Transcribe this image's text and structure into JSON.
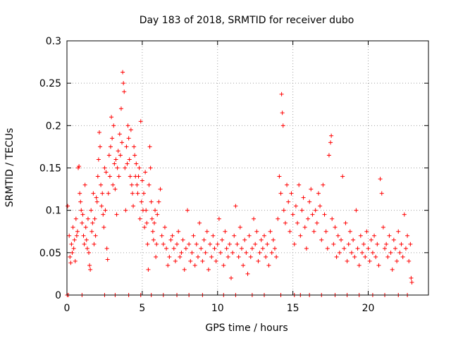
{
  "chart_data": {
    "type": "scatter",
    "title": "Day 183 of 2018, SRMTID for receiver dubo",
    "xlabel": "GPS time / hours",
    "ylabel": "SRMTID / TECUs",
    "xlim": [
      0,
      24
    ],
    "ylim": [
      0,
      0.3
    ],
    "grid": true,
    "marker": "+",
    "color": "#ff0000",
    "x_ticks": [
      {
        "value": 0,
        "label": "0"
      },
      {
        "value": 5,
        "label": "5"
      },
      {
        "value": 10,
        "label": "10"
      },
      {
        "value": 15,
        "label": "15"
      },
      {
        "value": 20,
        "label": "20"
      }
    ],
    "y_ticks": [
      {
        "value": 0,
        "label": "0"
      },
      {
        "value": 0.05,
        "label": "0.05"
      },
      {
        "value": 0.1,
        "label": "0.1"
      },
      {
        "value": 0.15,
        "label": "0.15"
      },
      {
        "value": 0.2,
        "label": "0.2"
      },
      {
        "value": 0.25,
        "label": "0.25"
      },
      {
        "value": 0.3,
        "label": "0.3"
      }
    ],
    "points": [
      [
        0.05,
        0.105
      ],
      [
        0.15,
        0.07
      ],
      [
        0.2,
        0.045
      ],
      [
        0.25,
        0.038
      ],
      [
        0.3,
        0.06
      ],
      [
        0.35,
        0.05
      ],
      [
        0.4,
        0.08
      ],
      [
        0.45,
        0.055
      ],
      [
        0.5,
        0.065
      ],
      [
        0.55,
        0.04
      ],
      [
        0.6,
        0.09
      ],
      [
        0.65,
        0.07
      ],
      [
        0.7,
        0.075
      ],
      [
        0.75,
        0.15
      ],
      [
        0.8,
        0.152
      ],
      [
        0.85,
        0.12
      ],
      [
        0.9,
        0.11
      ],
      [
        0.95,
        0.1
      ],
      [
        1.0,
        0.085
      ],
      [
        1.05,
        0.095
      ],
      [
        1.1,
        0.07
      ],
      [
        1.15,
        0.06
      ],
      [
        1.2,
        0.13
      ],
      [
        1.25,
        0.08
      ],
      [
        1.3,
        0.065
      ],
      [
        1.35,
        0.055
      ],
      [
        1.4,
        0.09
      ],
      [
        1.45,
        0.05
      ],
      [
        1.5,
        0.035
      ],
      [
        1.55,
        0.03
      ],
      [
        1.6,
        0.1
      ],
      [
        1.65,
        0.075
      ],
      [
        1.7,
        0.085
      ],
      [
        1.75,
        0.12
      ],
      [
        1.8,
        0.06
      ],
      [
        1.85,
        0.09
      ],
      [
        1.9,
        0.07
      ],
      [
        1.95,
        0.115
      ],
      [
        2.0,
        0.11
      ],
      [
        2.05,
        0.14
      ],
      [
        2.1,
        0.16
      ],
      [
        2.15,
        0.192
      ],
      [
        2.2,
        0.175
      ],
      [
        2.25,
        0.13
      ],
      [
        2.3,
        0.105
      ],
      [
        2.35,
        0.12
      ],
      [
        2.4,
        0.095
      ],
      [
        2.45,
        0.08
      ],
      [
        2.5,
        0.15
      ],
      [
        2.55,
        0.1
      ],
      [
        2.6,
        0.145
      ],
      [
        2.65,
        0.055
      ],
      [
        2.7,
        0.042
      ],
      [
        2.75,
        0.12
      ],
      [
        2.8,
        0.165
      ],
      [
        2.85,
        0.14
      ],
      [
        2.9,
        0.175
      ],
      [
        2.95,
        0.21
      ],
      [
        3.0,
        0.185
      ],
      [
        3.05,
        0.13
      ],
      [
        3.1,
        0.2
      ],
      [
        3.15,
        0.155
      ],
      [
        3.2,
        0.125
      ],
      [
        3.25,
        0.16
      ],
      [
        3.3,
        0.095
      ],
      [
        3.35,
        0.15
      ],
      [
        3.4,
        0.17
      ],
      [
        3.45,
        0.14
      ],
      [
        3.5,
        0.19
      ],
      [
        3.55,
        0.165
      ],
      [
        3.6,
        0.22
      ],
      [
        3.65,
        0.18
      ],
      [
        3.7,
        0.263
      ],
      [
        3.75,
        0.25
      ],
      [
        3.8,
        0.24
      ],
      [
        3.85,
        0.15
      ],
      [
        3.9,
        0.1
      ],
      [
        3.95,
        0.175
      ],
      [
        4.0,
        0.155
      ],
      [
        4.05,
        0.2
      ],
      [
        4.1,
        0.185
      ],
      [
        4.15,
        0.16
      ],
      [
        4.2,
        0.14
      ],
      [
        4.25,
        0.195
      ],
      [
        4.3,
        0.13
      ],
      [
        4.35,
        0.12
      ],
      [
        4.4,
        0.105
      ],
      [
        4.45,
        0.175
      ],
      [
        4.5,
        0.165
      ],
      [
        4.55,
        0.14
      ],
      [
        4.6,
        0.155
      ],
      [
        4.65,
        0.13
      ],
      [
        4.7,
        0.12
      ],
      [
        4.75,
        0.14
      ],
      [
        4.8,
        0.15
      ],
      [
        4.85,
        0.09
      ],
      [
        4.9,
        0.205
      ],
      [
        4.95,
        0.11
      ],
      [
        5.0,
        0.135
      ],
      [
        5.05,
        0.1
      ],
      [
        5.1,
        0.12
      ],
      [
        5.15,
        0.08
      ],
      [
        5.2,
        0.145
      ],
      [
        5.25,
        0.1
      ],
      [
        5.3,
        0.085
      ],
      [
        5.35,
        0.06
      ],
      [
        5.4,
        0.03
      ],
      [
        5.45,
        0.13
      ],
      [
        5.5,
        0.175
      ],
      [
        5.55,
        0.15
      ],
      [
        5.6,
        0.11
      ],
      [
        5.65,
        0.09
      ],
      [
        5.7,
        0.075
      ],
      [
        5.75,
        0.065
      ],
      [
        5.8,
        0.085
      ],
      [
        5.85,
        0.1
      ],
      [
        5.9,
        0.045
      ],
      [
        5.95,
        0.06
      ],
      [
        6.0,
        0.095
      ],
      [
        6.1,
        0.11
      ],
      [
        6.2,
        0.125
      ],
      [
        6.3,
        0.07
      ],
      [
        6.4,
        0.06
      ],
      [
        6.5,
        0.08
      ],
      [
        6.6,
        0.055
      ],
      [
        6.7,
        0.035
      ],
      [
        6.8,
        0.045
      ],
      [
        6.9,
        0.065
      ],
      [
        7.0,
        0.07
      ],
      [
        7.1,
        0.055
      ],
      [
        7.2,
        0.04
      ],
      [
        7.3,
        0.06
      ],
      [
        7.4,
        0.075
      ],
      [
        7.5,
        0.045
      ],
      [
        7.6,
        0.05
      ],
      [
        7.7,
        0.065
      ],
      [
        7.8,
        0.03
      ],
      [
        7.9,
        0.055
      ],
      [
        8.0,
        0.1
      ],
      [
        8.1,
        0.06
      ],
      [
        8.2,
        0.04
      ],
      [
        8.3,
        0.05
      ],
      [
        8.4,
        0.07
      ],
      [
        8.5,
        0.035
      ],
      [
        8.6,
        0.06
      ],
      [
        8.7,
        0.045
      ],
      [
        8.8,
        0.085
      ],
      [
        8.9,
        0.055
      ],
      [
        9.0,
        0.04
      ],
      [
        9.1,
        0.065
      ],
      [
        9.2,
        0.05
      ],
      [
        9.3,
        0.075
      ],
      [
        9.4,
        0.03
      ],
      [
        9.5,
        0.06
      ],
      [
        9.6,
        0.045
      ],
      [
        9.7,
        0.07
      ],
      [
        9.8,
        0.055
      ],
      [
        9.9,
        0.04
      ],
      [
        10.0,
        0.06
      ],
      [
        10.1,
        0.09
      ],
      [
        10.2,
        0.05
      ],
      [
        10.3,
        0.065
      ],
      [
        10.4,
        0.035
      ],
      [
        10.5,
        0.075
      ],
      [
        10.6,
        0.055
      ],
      [
        10.7,
        0.045
      ],
      [
        10.8,
        0.06
      ],
      [
        10.9,
        0.02
      ],
      [
        11.0,
        0.05
      ],
      [
        11.1,
        0.07
      ],
      [
        11.2,
        0.105
      ],
      [
        11.3,
        0.06
      ],
      [
        11.4,
        0.045
      ],
      [
        11.5,
        0.08
      ],
      [
        11.6,
        0.055
      ],
      [
        11.7,
        0.035
      ],
      [
        11.8,
        0.065
      ],
      [
        11.9,
        0.05
      ],
      [
        12.0,
        0.025
      ],
      [
        12.1,
        0.07
      ],
      [
        12.2,
        0.045
      ],
      [
        12.3,
        0.055
      ],
      [
        12.4,
        0.09
      ],
      [
        12.5,
        0.06
      ],
      [
        12.6,
        0.075
      ],
      [
        12.7,
        0.04
      ],
      [
        12.8,
        0.05
      ],
      [
        12.9,
        0.065
      ],
      [
        13.0,
        0.055
      ],
      [
        13.1,
        0.07
      ],
      [
        13.2,
        0.045
      ],
      [
        13.3,
        0.06
      ],
      [
        13.4,
        0.035
      ],
      [
        13.5,
        0.075
      ],
      [
        13.6,
        0.05
      ],
      [
        13.7,
        0.065
      ],
      [
        13.8,
        0.055
      ],
      [
        13.9,
        0.045
      ],
      [
        14.0,
        0.09
      ],
      [
        14.1,
        0.14
      ],
      [
        14.2,
        0.12
      ],
      [
        14.25,
        0.237
      ],
      [
        14.3,
        0.215
      ],
      [
        14.35,
        0.2
      ],
      [
        14.4,
        0.1
      ],
      [
        14.5,
        0.085
      ],
      [
        14.6,
        0.13
      ],
      [
        14.7,
        0.11
      ],
      [
        14.8,
        0.075
      ],
      [
        14.9,
        0.12
      ],
      [
        15.0,
        0.095
      ],
      [
        15.1,
        0.06
      ],
      [
        15.2,
        0.105
      ],
      [
        15.3,
        0.085
      ],
      [
        15.4,
        0.13
      ],
      [
        15.5,
        0.07
      ],
      [
        15.6,
        0.1
      ],
      [
        15.7,
        0.115
      ],
      [
        15.8,
        0.08
      ],
      [
        15.9,
        0.055
      ],
      [
        16.0,
        0.09
      ],
      [
        16.1,
        0.11
      ],
      [
        16.2,
        0.125
      ],
      [
        16.3,
        0.095
      ],
      [
        16.4,
        0.075
      ],
      [
        16.5,
        0.1
      ],
      [
        16.6,
        0.085
      ],
      [
        16.7,
        0.12
      ],
      [
        16.8,
        0.105
      ],
      [
        16.9,
        0.065
      ],
      [
        17.0,
        0.13
      ],
      [
        17.1,
        0.095
      ],
      [
        17.2,
        0.075
      ],
      [
        17.3,
        0.055
      ],
      [
        17.4,
        0.165
      ],
      [
        17.5,
        0.18
      ],
      [
        17.55,
        0.188
      ],
      [
        17.6,
        0.09
      ],
      [
        17.7,
        0.06
      ],
      [
        17.8,
        0.08
      ],
      [
        17.9,
        0.045
      ],
      [
        18.0,
        0.07
      ],
      [
        18.1,
        0.05
      ],
      [
        18.2,
        0.065
      ],
      [
        18.3,
        0.14
      ],
      [
        18.4,
        0.055
      ],
      [
        18.5,
        0.085
      ],
      [
        18.6,
        0.04
      ],
      [
        18.7,
        0.06
      ],
      [
        18.8,
        0.075
      ],
      [
        18.9,
        0.05
      ],
      [
        19.0,
        0.065
      ],
      [
        19.1,
        0.045
      ],
      [
        19.2,
        0.1
      ],
      [
        19.3,
        0.055
      ],
      [
        19.4,
        0.035
      ],
      [
        19.5,
        0.07
      ],
      [
        19.6,
        0.05
      ],
      [
        19.7,
        0.06
      ],
      [
        19.8,
        0.045
      ],
      [
        19.9,
        0.075
      ],
      [
        20.0,
        0.055
      ],
      [
        20.1,
        0.04
      ],
      [
        20.2,
        0.065
      ],
      [
        20.3,
        0.05
      ],
      [
        20.4,
        0.07
      ],
      [
        20.5,
        0.045
      ],
      [
        20.6,
        0.06
      ],
      [
        20.7,
        0.035
      ],
      [
        20.8,
        0.137
      ],
      [
        20.9,
        0.12
      ],
      [
        21.0,
        0.08
      ],
      [
        21.1,
        0.055
      ],
      [
        21.2,
        0.06
      ],
      [
        21.3,
        0.045
      ],
      [
        21.4,
        0.07
      ],
      [
        21.5,
        0.05
      ],
      [
        21.6,
        0.03
      ],
      [
        21.7,
        0.065
      ],
      [
        21.8,
        0.055
      ],
      [
        21.9,
        0.04
      ],
      [
        22.0,
        0.075
      ],
      [
        22.1,
        0.05
      ],
      [
        22.2,
        0.06
      ],
      [
        22.3,
        0.045
      ],
      [
        22.4,
        0.095
      ],
      [
        22.5,
        0.055
      ],
      [
        22.6,
        0.07
      ],
      [
        22.7,
        0.04
      ],
      [
        22.8,
        0.06
      ],
      [
        22.85,
        0.02
      ],
      [
        22.9,
        0.015
      ],
      [
        0.02,
        0.0
      ],
      [
        0.1,
        0.0
      ],
      [
        1.0,
        0.0
      ],
      [
        2.5,
        0.0
      ],
      [
        3.2,
        0.0
      ],
      [
        4.1,
        0.0
      ],
      [
        4.9,
        0.0
      ],
      [
        5.6,
        0.0
      ],
      [
        6.4,
        0.0
      ],
      [
        7.3,
        0.0
      ],
      [
        8.1,
        0.0
      ],
      [
        9.0,
        0.0
      ],
      [
        10.4,
        0.0
      ],
      [
        11.2,
        0.0
      ],
      [
        12.3,
        0.0
      ],
      [
        13.1,
        0.0
      ],
      [
        14.2,
        0.0
      ],
      [
        15.1,
        0.0
      ],
      [
        15.5,
        0.0
      ],
      [
        16.1,
        0.0
      ],
      [
        16.9,
        0.0
      ],
      [
        17.8,
        0.0
      ],
      [
        18.6,
        0.0
      ],
      [
        19.4,
        0.0
      ],
      [
        20.3,
        0.0
      ],
      [
        21.1,
        0.0
      ],
      [
        22.0,
        0.0
      ],
      [
        22.6,
        0.0
      ]
    ]
  }
}
